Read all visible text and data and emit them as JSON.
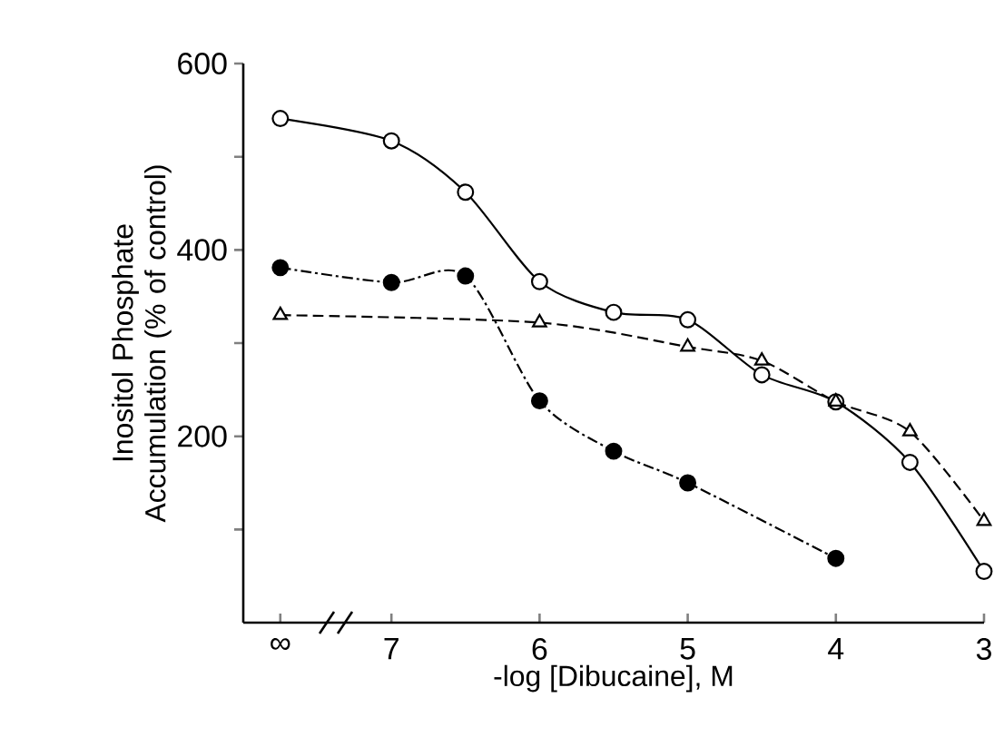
{
  "chart_data": {
    "type": "line",
    "xlabel": "-log [Dibucaine], M",
    "ylabel": "Inositol Phosphate Accumulation (% of control)",
    "xlim": [
      8,
      3
    ],
    "xticks": [
      {
        "value": 7.75,
        "label": "∞"
      },
      7,
      6,
      5,
      4,
      3
    ],
    "ylim": [
      0,
      600
    ],
    "yticks": [
      {
        "value": 100,
        "label": null
      },
      200,
      {
        "value": 300,
        "label": null
      },
      400,
      {
        "value": 500,
        "label": null
      },
      600
    ],
    "series": [
      {
        "color": "#000000",
        "marker": "circle",
        "line_style": "solid",
        "x": [
          7.75,
          7,
          6.5,
          6,
          5.5,
          5,
          4.5,
          4,
          3.5,
          3
        ],
        "values": [
          541,
          517,
          462,
          366,
          333,
          325,
          266,
          237,
          172,
          55
        ]
      },
      {
        "color": "#000000",
        "marker": "circle",
        "line_style": "dashdot",
        "x": [
          7.75,
          7,
          6.5,
          6,
          5.5,
          5,
          4
        ],
        "values": [
          381,
          365,
          372,
          238,
          184,
          150,
          69
        ]
      },
      {
        "color": "#000000",
        "marker": "triangle",
        "line_style": "dashed",
        "x": [
          7.75,
          6,
          5,
          4.5,
          4,
          3.5,
          3
        ],
        "values": [
          330,
          322,
          296,
          281,
          237,
          205,
          109
        ]
      }
    ]
  }
}
